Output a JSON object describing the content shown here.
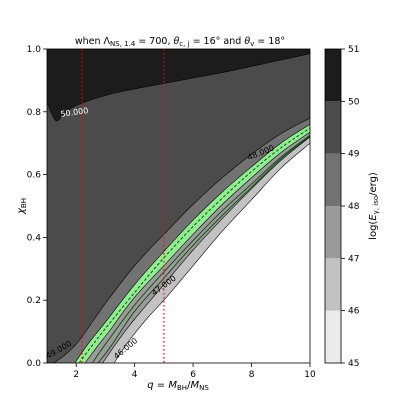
{
  "chart_data": {
    "type": "filled-contour",
    "title": "when Λ_{NS,1.4} = 700, θ_{c,j} = 16° and θ_v = 18°",
    "xlabel": "q = M_BH/M_NS",
    "ylabel": "χ_BH",
    "colorbar_label": "log(E_{γ,iso}/erg)",
    "xlim": [
      1,
      10
    ],
    "ylim": [
      0.0,
      1.0
    ],
    "x_ticks": [
      "2",
      "4",
      "6",
      "8",
      "10"
    ],
    "y_ticks": [
      "0.0",
      "0.2",
      "0.4",
      "0.6",
      "0.8",
      "1.0"
    ],
    "colorbar_ticks": [
      "45",
      "46",
      "47",
      "48",
      "49",
      "50",
      "51"
    ],
    "colorbar_levels": [
      {
        "range": [
          45,
          46
        ],
        "color": "#ebebeb"
      },
      {
        "range": [
          46,
          47
        ],
        "color": "#c2c2c2"
      },
      {
        "range": [
          47,
          48
        ],
        "color": "#9b9b9b"
      },
      {
        "range": [
          48,
          49
        ],
        "color": "#727272"
      },
      {
        "range": [
          49,
          50
        ],
        "color": "#4b4b4b"
      },
      {
        "range": [
          50,
          51
        ],
        "color": "#1c1c1c"
      }
    ],
    "highlight_band": {
      "range": [
        47.0,
        48.0
      ],
      "color": "#90ee90"
    },
    "contour_labels": [
      "50.000",
      "49.000",
      "48.000",
      "47.000",
      "46.000"
    ],
    "vertical_lines": [
      {
        "x": 2.2,
        "color": "#ff0000",
        "style": "dotted"
      },
      {
        "x": 5.0,
        "color": "#ff0000",
        "style": "dotted"
      }
    ],
    "boundaries": {
      "level_50": [
        [
          1.0,
          0.83
        ],
        [
          1.3,
          0.772
        ],
        [
          1.6,
          0.795
        ],
        [
          2.0,
          0.82
        ],
        [
          3.0,
          0.852
        ],
        [
          4.0,
          0.873
        ],
        [
          5.0,
          0.89
        ],
        [
          6.0,
          0.908
        ],
        [
          7.0,
          0.925
        ],
        [
          8.0,
          0.945
        ],
        [
          9.0,
          0.965
        ],
        [
          10.0,
          0.985
        ]
      ],
      "level_49": [
        [
          1.25,
          0.0
        ],
        [
          2.0,
          0.06
        ],
        [
          3.0,
          0.19
        ],
        [
          4.0,
          0.31
        ],
        [
          5.0,
          0.41
        ],
        [
          6.0,
          0.505
        ],
        [
          7.0,
          0.59
        ],
        [
          8.0,
          0.665
        ],
        [
          9.0,
          0.73
        ],
        [
          10.0,
          0.78
        ]
      ],
      "level_48": [
        [
          1.95,
          0.0
        ],
        [
          2.4,
          0.06
        ],
        [
          3.0,
          0.13
        ],
        [
          4.0,
          0.25
        ],
        [
          5.0,
          0.355
        ],
        [
          6.0,
          0.455
        ],
        [
          7.0,
          0.545
        ],
        [
          8.0,
          0.625
        ],
        [
          9.0,
          0.7
        ],
        [
          10.0,
          0.76
        ]
      ],
      "level_47": [
        [
          2.3,
          0.0
        ],
        [
          2.7,
          0.05
        ],
        [
          3.2,
          0.11
        ],
        [
          4.0,
          0.21
        ],
        [
          5.0,
          0.31
        ],
        [
          6.0,
          0.41
        ],
        [
          7.0,
          0.505
        ],
        [
          8.0,
          0.59
        ],
        [
          9.0,
          0.67
        ],
        [
          10.0,
          0.735
        ]
      ],
      "level_46": [
        [
          2.9,
          0.0
        ],
        [
          3.5,
          0.08
        ],
        [
          4.0,
          0.14
        ],
        [
          5.0,
          0.25
        ],
        [
          6.0,
          0.36
        ],
        [
          7.0,
          0.46
        ],
        [
          8.0,
          0.555
        ],
        [
          9.0,
          0.645
        ],
        [
          10.0,
          0.72
        ]
      ],
      "level_45": [
        [
          3.3,
          0.0
        ],
        [
          3.8,
          0.07
        ],
        [
          4.5,
          0.15
        ],
        [
          5.0,
          0.2
        ],
        [
          6.0,
          0.31
        ],
        [
          7.0,
          0.42
        ],
        [
          8.0,
          0.52
        ],
        [
          9.0,
          0.62
        ],
        [
          10.0,
          0.7
        ]
      ],
      "dashed_contour": [
        [
          2.1,
          0.0
        ],
        [
          2.5,
          0.05
        ],
        [
          3.0,
          0.11
        ],
        [
          4.0,
          0.225
        ],
        [
          5.0,
          0.335
        ],
        [
          6.0,
          0.435
        ],
        [
          7.0,
          0.525
        ],
        [
          8.0,
          0.61
        ],
        [
          9.0,
          0.685
        ],
        [
          10.0,
          0.748
        ]
      ],
      "inner_contour_a": [
        [
          2.55,
          0.0
        ],
        [
          3.0,
          0.06
        ],
        [
          4.0,
          0.185
        ],
        [
          5.0,
          0.29
        ],
        [
          6.0,
          0.39
        ],
        [
          7.0,
          0.485
        ],
        [
          8.0,
          0.57
        ],
        [
          9.0,
          0.655
        ],
        [
          10.0,
          0.725
        ]
      ],
      "inner_contour_b": [
        [
          2.75,
          0.0
        ],
        [
          3.2,
          0.055
        ],
        [
          4.0,
          0.165
        ],
        [
          5.0,
          0.27
        ],
        [
          6.0,
          0.375
        ],
        [
          7.0,
          0.47
        ],
        [
          8.0,
          0.56
        ],
        [
          9.0,
          0.65
        ],
        [
          10.0,
          0.722
        ]
      ]
    }
  }
}
